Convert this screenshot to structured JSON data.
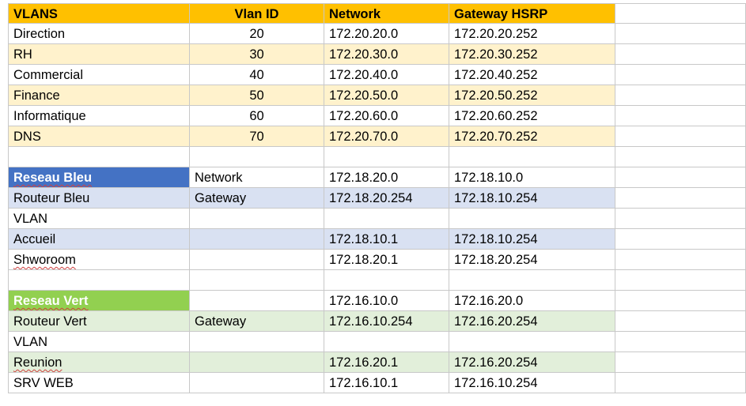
{
  "vlans_table": {
    "headers": [
      "VLANS",
      "Vlan ID",
      "Network",
      "Gateway HSRP"
    ],
    "rows": [
      {
        "name": "Direction",
        "id": "20",
        "network": "172.20.20.0",
        "gateway": "172.20.20.252"
      },
      {
        "name": "RH",
        "id": "30",
        "network": "172.20.30.0",
        "gateway": "172.20.30.252"
      },
      {
        "name": "Commercial",
        "id": "40",
        "network": "172.20.40.0",
        "gateway": "172.20.40.252"
      },
      {
        "name": "Finance",
        "id": "50",
        "network": "172.20.50.0",
        "gateway": "172.20.50.252"
      },
      {
        "name": "Informatique",
        "id": "60",
        "network": "172.20.60.0",
        "gateway": "172.20.60.252"
      },
      {
        "name": "DNS",
        "id": "70",
        "network": "172.20.70.0",
        "gateway": "172.20.70.252"
      }
    ]
  },
  "reseau_bleu": {
    "title": "Reseau Bleu",
    "rows": [
      {
        "c1": "Network",
        "c2": "172.18.20.0",
        "c3": "172.18.10.0"
      },
      {
        "c0": "Routeur Bleu",
        "c1": "Gateway",
        "c2": "172.18.20.254",
        "c3": "172.18.10.254"
      },
      {
        "c0": "VLAN",
        "c1": "",
        "c2": "",
        "c3": ""
      },
      {
        "c0": "Accueil",
        "c1": "",
        "c2": "172.18.10.1",
        "c3": "172.18.10.254"
      },
      {
        "c0": "Shworoom",
        "c1": "",
        "c2": "172.18.20.1",
        "c3": "172.18.20.254"
      }
    ]
  },
  "reseau_vert": {
    "title": "Reseau Vert",
    "rows": [
      {
        "c1": "",
        "c2": "172.16.10.0",
        "c3": "172.16.20.0"
      },
      {
        "c0": "Routeur Vert",
        "c1": "Gateway",
        "c2": "172.16.10.254",
        "c3": "172.16.20.254"
      },
      {
        "c0": "VLAN",
        "c1": "",
        "c2": "",
        "c3": ""
      },
      {
        "c0": "Reunion",
        "c1": "",
        "c2": "172.16.20.1",
        "c3": "172.16.20.254"
      },
      {
        "c0": "SRV WEB",
        "c1": "",
        "c2": "172.16.10.1",
        "c3": "172.16.10.254"
      }
    ]
  },
  "colors": {
    "header": "#ffc000",
    "band_yellow": "#fff2cc",
    "bleu_title": "#4472c4",
    "band_blue": "#d9e1f2",
    "vert_title": "#92d050",
    "band_green": "#e2efda"
  }
}
